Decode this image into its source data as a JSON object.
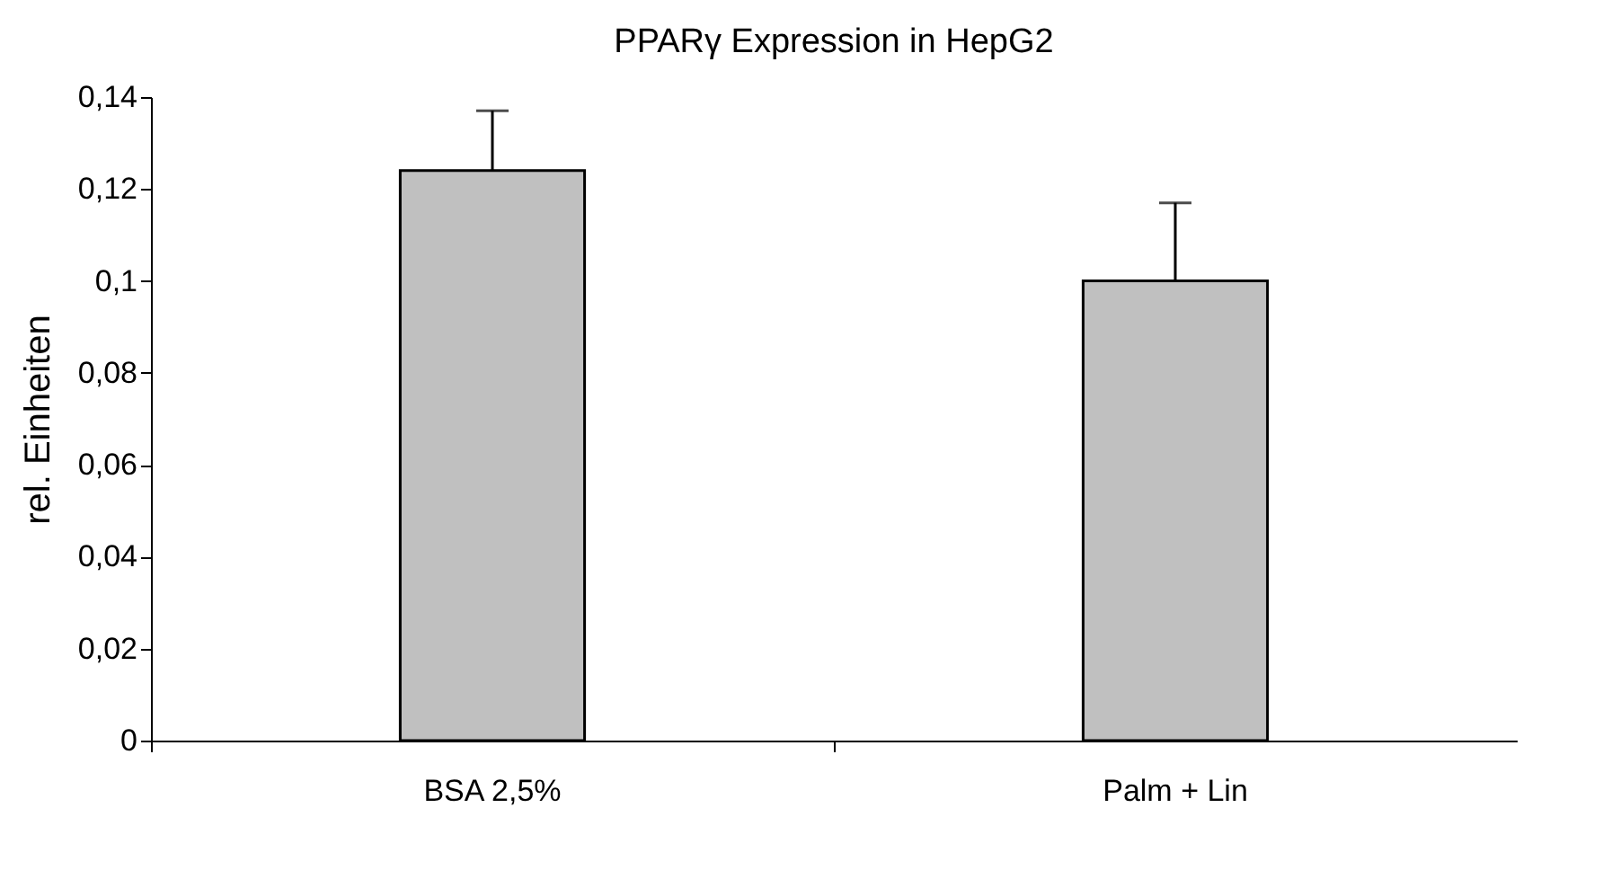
{
  "chart_data": {
    "type": "bar",
    "title": "PPARγ Expression in HepG2",
    "ylabel": "rel. Einheiten",
    "categories": [
      "BSA 2,5%",
      "Palm + Lin"
    ],
    "values": [
      0.124,
      0.1
    ],
    "color": "#c0c0c0",
    "errors": [
      [
        0.124,
        0.137
      ],
      [
        0.1,
        0.117
      ]
    ],
    "ylim": [
      0,
      0.14
    ],
    "yticks": [
      {
        "value": 0,
        "label": "0"
      },
      {
        "value": 0.02,
        "label": "0,02"
      },
      {
        "value": 0.04,
        "label": "0,04"
      },
      {
        "value": 0.06,
        "label": "0,06"
      },
      {
        "value": 0.08,
        "label": "0,08"
      },
      {
        "value": 0.1,
        "label": "0,1"
      },
      {
        "value": 0.12,
        "label": "0,12"
      },
      {
        "value": 0.14,
        "label": "0,14"
      }
    ],
    "grid": false
  }
}
